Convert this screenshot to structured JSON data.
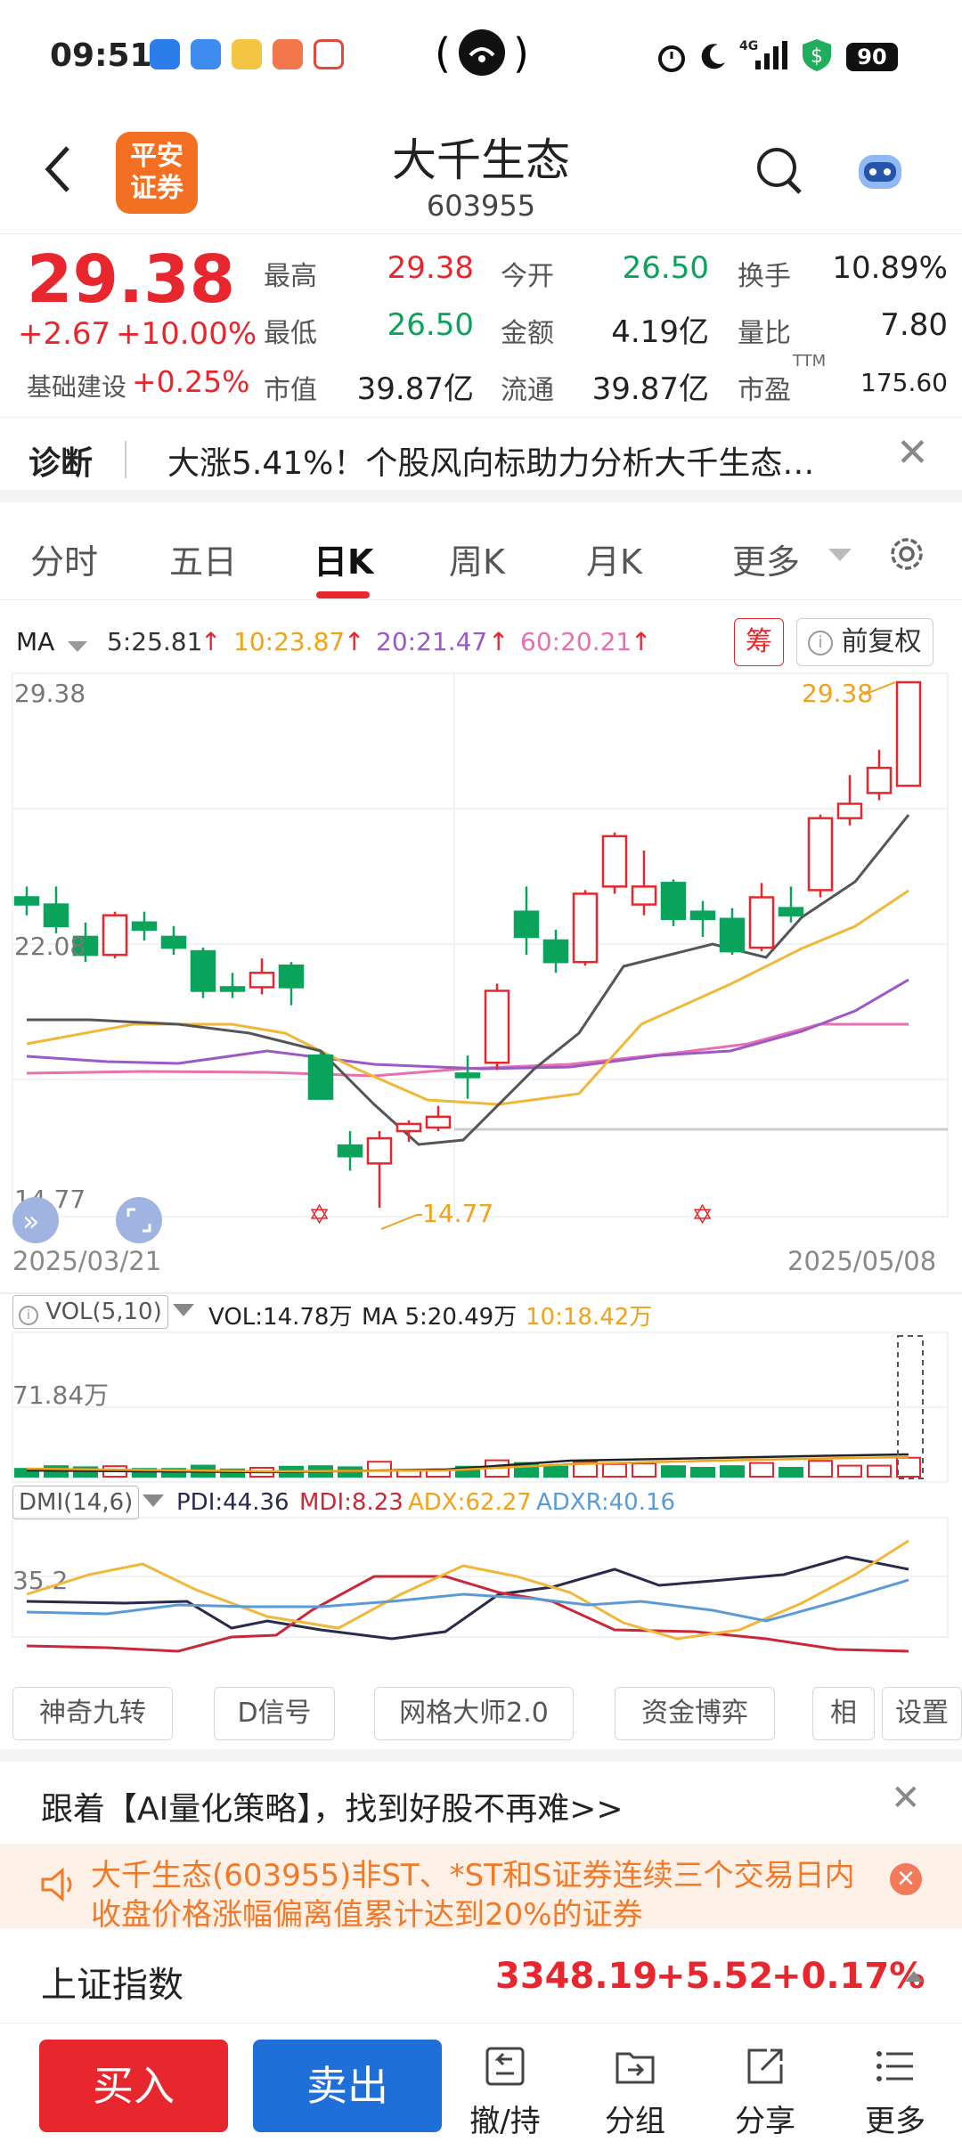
{
  "status_bar": {
    "time": "09:51",
    "battery": "90",
    "network": "4G"
  },
  "header": {
    "logo_line1": "平安",
    "logo_line2": "证券",
    "stock_name": "大千生态",
    "stock_code": "603955"
  },
  "quote": {
    "price": "29.38",
    "change": "+2.67",
    "change_pct": "+10.00%",
    "sector_name": "基础建设",
    "sector_pct": "+0.25%",
    "high_label": "最高",
    "high": "29.38",
    "low_label": "最低",
    "low": "26.50",
    "mcap_label": "市值",
    "mcap": "39.87亿",
    "open_label": "今开",
    "open": "26.50",
    "amount_label": "金额",
    "amount": "4.19亿",
    "float_label": "流通",
    "float": "39.87亿",
    "turnover_label": "换手",
    "turnover": "10.89%",
    "vol_ratio_label": "量比",
    "vol_ratio": "7.80",
    "pe_label": "市盈",
    "pe_sup": "TTM",
    "pe": "175.60"
  },
  "diagnosis": {
    "title": "诊断",
    "text": "大涨5.41%！个股风向标助力分析大千生态…"
  },
  "tabs": {
    "items": [
      "分时",
      "五日",
      "日K",
      "周K",
      "月K",
      "更多"
    ],
    "active": "日K"
  },
  "ma_legend": {
    "label": "MA",
    "ma5": "5:25.81",
    "ma10": "10:23.87",
    "ma20": "20:21.47",
    "ma60": "60:20.21",
    "chip": "筹",
    "adjust": "前复权"
  },
  "kline": {
    "y_max_label": "29.38",
    "y_mid_label": "22.08",
    "y_min_label": "14.77",
    "high_annotation": "29.38",
    "low_annotation": "14.77",
    "start_date": "2025/03/21",
    "end_date": "2025/05/08"
  },
  "volume": {
    "label": "VOL(5,10)",
    "vol": "VOL:14.78万",
    "ma5": "MA 5:20.49万",
    "ma10": "10:18.42万",
    "axis_label": "71.84万"
  },
  "dmi": {
    "label": "DMI(14,6)",
    "pdi": "PDI:44.36",
    "mdi": "MDI:8.23",
    "adx": "ADX:62.27",
    "adxr": "ADXR:40.16",
    "axis_label": "35.2"
  },
  "tools": [
    "神奇九转",
    "D信号",
    "网格大师2.0",
    "资金博弈",
    "相",
    "设置"
  ],
  "ai_banner": "跟着【AI量化策略】，找到好股不再难>>",
  "notice": "大千生态(603955)非ST、*ST和S证券连续三个交易日内收盘价格涨幅偏离值累计达到20%的证券",
  "index": {
    "name": "上证指数",
    "value": "3348.19",
    "change": "+5.52",
    "pct": "+0.17%"
  },
  "bottom_bar": {
    "buy": "买入",
    "sell": "卖出",
    "items": [
      "撤/持",
      "分组",
      "分享",
      "更多"
    ]
  },
  "chart_data": {
    "type": "candlestick",
    "y_range": [
      14.77,
      29.38
    ],
    "x_range": [
      "2025/03/21",
      "2025/05/08"
    ],
    "candles": [
      {
        "o": 23.4,
        "c": 23.2,
        "h": 23.7,
        "l": 22.9
      },
      {
        "o": 23.2,
        "c": 22.6,
        "h": 23.7,
        "l": 22.4
      },
      {
        "o": 22.3,
        "c": 21.8,
        "h": 22.7,
        "l": 21.6
      },
      {
        "o": 21.8,
        "c": 22.9,
        "h": 23.0,
        "l": 21.7
      },
      {
        "o": 22.7,
        "c": 22.5,
        "h": 23.0,
        "l": 22.2
      },
      {
        "o": 22.3,
        "c": 22.0,
        "h": 22.6,
        "l": 21.8
      },
      {
        "o": 21.9,
        "c": 20.8,
        "h": 22.0,
        "l": 20.6
      },
      {
        "o": 20.9,
        "c": 20.8,
        "h": 21.3,
        "l": 20.6
      },
      {
        "o": 20.9,
        "c": 21.3,
        "h": 21.7,
        "l": 20.7
      },
      {
        "o": 21.5,
        "c": 20.9,
        "h": 21.6,
        "l": 20.4
      },
      {
        "o": 19.0,
        "c": 17.8,
        "h": 19.1,
        "l": 17.8
      },
      {
        "o": 16.5,
        "c": 16.2,
        "h": 16.9,
        "l": 15.8
      },
      {
        "o": 16.0,
        "c": 16.7,
        "h": 16.9,
        "l": 14.77
      },
      {
        "o": 16.9,
        "c": 17.1,
        "h": 17.2,
        "l": 16.6
      },
      {
        "o": 17.0,
        "c": 17.3,
        "h": 17.6,
        "l": 16.9
      },
      {
        "o": 18.5,
        "c": 18.4,
        "h": 19.0,
        "l": 17.8
      },
      {
        "o": 18.8,
        "c": 20.8,
        "h": 21.0,
        "l": 18.6
      },
      {
        "o": 23.0,
        "c": 22.3,
        "h": 23.7,
        "l": 21.8
      },
      {
        "o": 22.2,
        "c": 21.6,
        "h": 22.5,
        "l": 21.3
      },
      {
        "o": 21.6,
        "c": 23.5,
        "h": 23.6,
        "l": 21.5
      },
      {
        "o": 23.7,
        "c": 25.1,
        "h": 25.2,
        "l": 23.5
      },
      {
        "o": 23.2,
        "c": 23.7,
        "h": 24.7,
        "l": 22.9
      },
      {
        "o": 23.8,
        "c": 22.8,
        "h": 23.9,
        "l": 22.6
      },
      {
        "o": 23.0,
        "c": 22.8,
        "h": 23.3,
        "l": 22.3
      },
      {
        "o": 22.8,
        "c": 21.9,
        "h": 23.1,
        "l": 21.8
      },
      {
        "o": 22.0,
        "c": 23.4,
        "h": 23.8,
        "l": 21.9
      },
      {
        "o": 23.1,
        "c": 22.9,
        "h": 23.7,
        "l": 22.7
      },
      {
        "o": 23.6,
        "c": 25.6,
        "h": 25.7,
        "l": 23.4
      },
      {
        "o": 25.6,
        "c": 26.0,
        "h": 26.8,
        "l": 25.4
      },
      {
        "o": 26.3,
        "c": 27.0,
        "h": 27.5,
        "l": 26.1
      },
      {
        "o": 26.5,
        "c": 29.38,
        "h": 29.38,
        "l": 26.5
      }
    ]
  }
}
